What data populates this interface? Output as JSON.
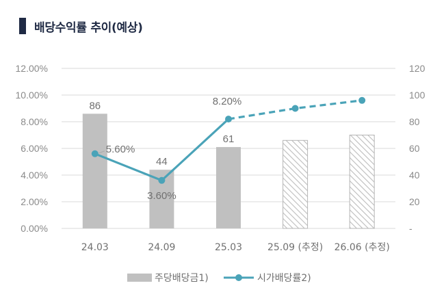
{
  "title": "배당수익률 추이(예상)",
  "colors": {
    "bar": "#c0c0c0",
    "bar_estimate_stroke": "#b5b5b5",
    "line": "#4aa3b8",
    "grid": "#d9d9d9",
    "title_marker": "#1f2a44"
  },
  "chart_data": {
    "type": "bar+line",
    "title": "배당수익률 추이(예상)",
    "categories": [
      "24.03",
      "24.09",
      "25.03",
      "25.09 (추정)",
      "26.06 (추정)"
    ],
    "estimated": [
      false,
      false,
      false,
      true,
      true
    ],
    "series": [
      {
        "name": "주당배당금1)",
        "type": "bar",
        "axis": "right",
        "values": [
          86,
          44,
          61,
          66,
          70
        ],
        "labels": [
          "86",
          "44",
          "61",
          null,
          null
        ]
      },
      {
        "name": "시가배당률2)",
        "type": "line",
        "axis": "left",
        "values": [
          5.6,
          3.6,
          8.2,
          9.0,
          9.6
        ],
        "labels": [
          "5.60%",
          "3.60%",
          "8.20%",
          null,
          null
        ]
      }
    ],
    "left_axis": {
      "range": [
        0,
        12
      ],
      "ticks": [
        "0.00%",
        "2.00%",
        "4.00%",
        "6.00%",
        "8.00%",
        "10.00%",
        "12.00%"
      ]
    },
    "right_axis": {
      "range": [
        0,
        120
      ],
      "ticks": [
        "-",
        "20",
        "40",
        "60",
        "80",
        "100",
        "120"
      ]
    },
    "legend_position": "bottom"
  }
}
